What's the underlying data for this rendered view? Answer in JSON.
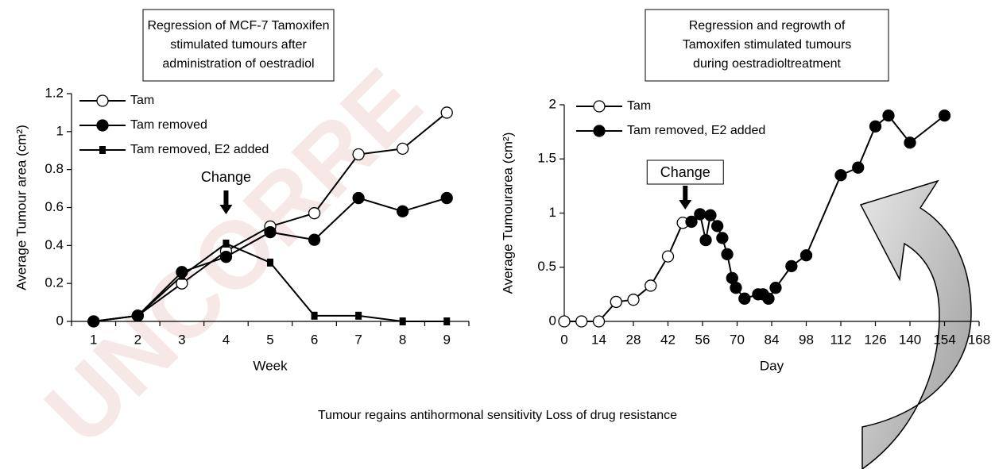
{
  "watermark": "UNCORRE",
  "caption": "Tumour regains antihormonal sensitivity Loss of drug resistance",
  "chart_data": [
    {
      "type": "line",
      "title": [
        "Regression of MCF-7 Tamoxifen",
        "stimulated tumours after",
        "administration of oestradiol"
      ],
      "x_label": "Week",
      "y_label": "Average Tumour area (cm²)",
      "annotation": "Change",
      "categories": [
        "1",
        "2",
        "3",
        "4",
        "5",
        "6",
        "7",
        "8",
        "9"
      ],
      "ylim": [
        0,
        1.2
      ],
      "yticks": [
        0,
        0.2,
        0.4,
        0.6,
        0.8,
        1,
        1.2
      ],
      "series": [
        {
          "name": "Tam",
          "color": "#000000",
          "marker": "open-circle",
          "values": [
            0,
            0.03,
            0.2,
            0.37,
            0.5,
            0.57,
            0.88,
            0.91,
            1.1
          ]
        },
        {
          "name": "Tam removed",
          "color": "#000000",
          "marker": "circle",
          "values": [
            0,
            0.03,
            0.26,
            0.34,
            0.47,
            0.43,
            0.65,
            0.58,
            0.65
          ]
        },
        {
          "name": "Tam removed, E2 added",
          "color": "#000000",
          "marker": "square",
          "values": [
            0,
            0.03,
            0.24,
            0.41,
            0.31,
            0.03,
            0.03,
            0,
            0
          ]
        }
      ]
    },
    {
      "type": "line",
      "title": [
        "Regression and regrowth of",
        "Tamoxifen stimulated tumours",
        "during oestradioltreatment"
      ],
      "x_label": "Day",
      "y_label": "Average Tumourarea (cm²)",
      "annotation": "Change",
      "xlim": [
        0,
        168
      ],
      "xticks": [
        0,
        14,
        28,
        42,
        56,
        70,
        84,
        98,
        112,
        126,
        140,
        154,
        168
      ],
      "ylim": [
        0,
        2
      ],
      "yticks": [
        0,
        0.5,
        1,
        1.5,
        2
      ],
      "series": [
        {
          "name": "Tam",
          "color": "#000000",
          "marker": "open-circle",
          "x": [
            0,
            7,
            14,
            21,
            28,
            35,
            42,
            48
          ],
          "values": [
            0,
            0,
            0,
            0.18,
            0.2,
            0.33,
            0.6,
            0.91
          ]
        },
        {
          "name": "Tam removed, E2 added",
          "color": "#000000",
          "marker": "circle",
          "x": [
            51.5,
            55,
            57.3,
            59.2,
            62,
            64,
            66,
            68,
            69.5,
            73,
            78.5,
            80.5,
            82.7,
            85.6,
            92,
            98,
            112,
            119,
            126,
            131.3,
            140,
            154
          ],
          "values": [
            0.92,
            0.99,
            0.75,
            0.98,
            0.88,
            0.77,
            0.62,
            0.4,
            0.31,
            0.21,
            0.25,
            0.25,
            0.21,
            0.31,
            0.51,
            0.61,
            1.35,
            1.42,
            1.8,
            1.9,
            1.65,
            1.9
          ]
        }
      ]
    }
  ]
}
